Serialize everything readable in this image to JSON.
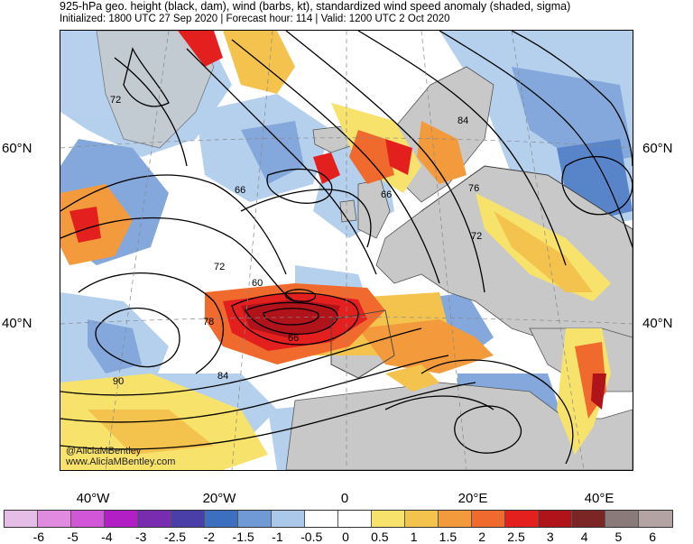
{
  "title": {
    "line1": "925-hPa geo. height (black, dam), wind (barbs, kt), standardized wind speed anomaly (shaded, sigma)",
    "line2": "Initialized: 1800 UTC 27 Sep 2020 | Forecast hour: 114 | Valid: 1200 UTC 2 Oct 2020"
  },
  "axes": {
    "lat_labels_left": [
      "60°N",
      "40°N"
    ],
    "lat_labels_right": [
      "60°N",
      "40°N"
    ],
    "lon_labels": [
      "40°W",
      "20°W",
      "0",
      "20°E",
      "40°E"
    ]
  },
  "contour_labels": [
    "72",
    "84",
    "66",
    "66",
    "76",
    "72",
    "72",
    "60",
    "78",
    "84",
    "66",
    "90"
  ],
  "credits": {
    "handle": "@AliciaMBentley",
    "website": "www.AliciaMBentley.com"
  },
  "colorbar": {
    "labels": [
      "-6",
      "-5",
      "-4",
      "-3",
      "-2.5",
      "-2",
      "-1.5",
      "-1",
      "-0.5",
      "0",
      "0.5",
      "1",
      "1.5",
      "2",
      "2.5",
      "3",
      "4",
      "5",
      "6"
    ],
    "colors": [
      "#e6bde6",
      "#e08be0",
      "#d257d8",
      "#b21fc4",
      "#7a2cb0",
      "#4a3ea8",
      "#3c6fc0",
      "#6f9ad6",
      "#a9c8ea",
      "#ffffff",
      "#ffffff",
      "#f7e26b",
      "#f4c34d",
      "#f29a3c",
      "#ef6a2c",
      "#e3201e",
      "#b0131a",
      "#7b2525",
      "#8a7a7a",
      "#b3a3a3"
    ]
  },
  "map": {
    "land_color": "#c8c8c8",
    "ocean_color": "#d9dfe8",
    "high_anomaly_color": "#d42a20",
    "low_anomaly_color": "#3f6fc2"
  }
}
